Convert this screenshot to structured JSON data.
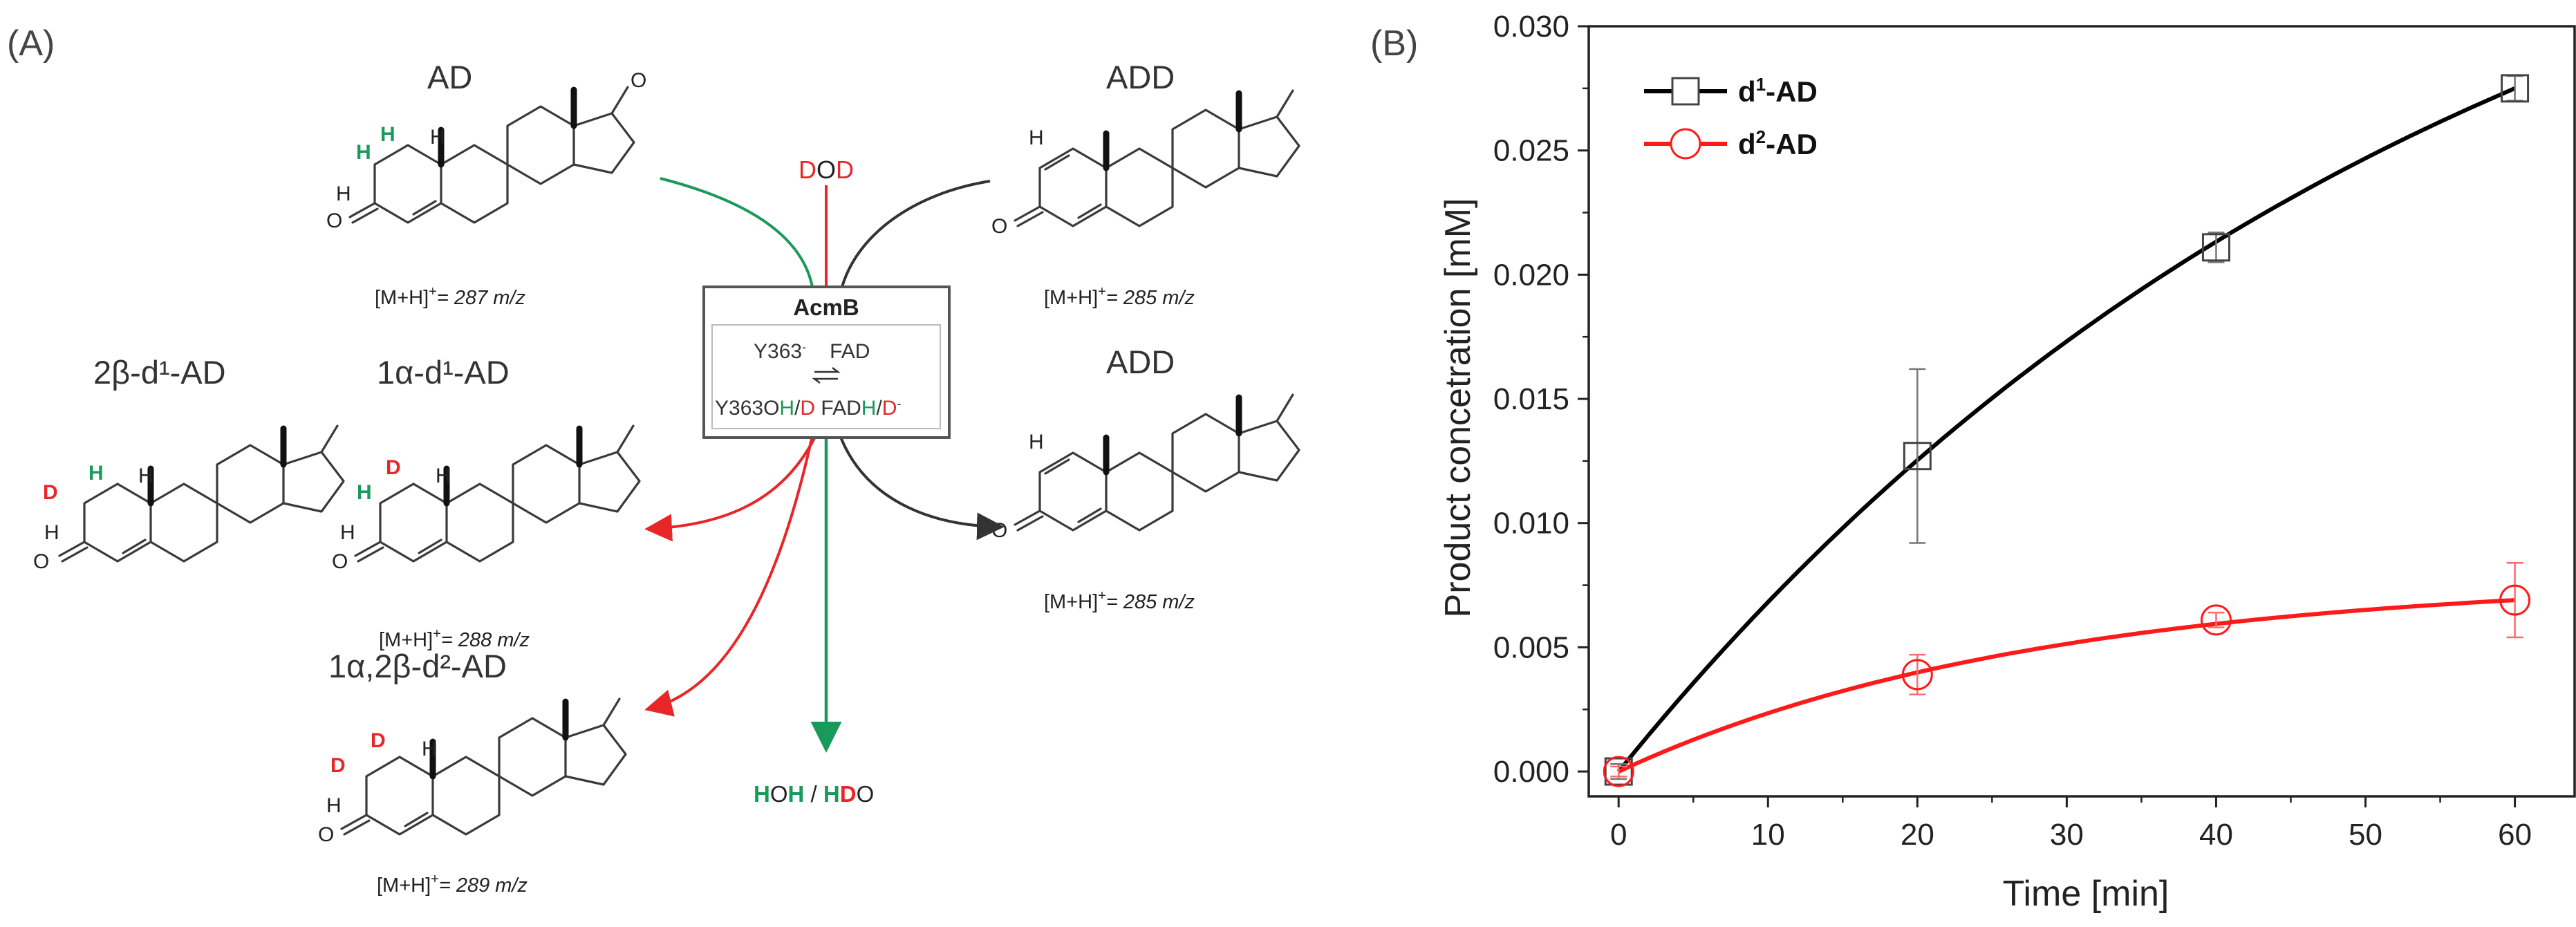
{
  "panel_a": {
    "label": "(A)",
    "compounds": [
      {
        "name": "AD",
        "mz_prefix": "[M+H]",
        "mz_sup": "+",
        "mz_value": "= 287 m/z"
      },
      {
        "name": "2β-d¹-AD"
      },
      {
        "name": "1α-d¹-AD",
        "mz_prefix": "[M+H]",
        "mz_sup": "+",
        "mz_value": "= 288 m/z"
      },
      {
        "name": "1α,2β-d²-AD",
        "mz_prefix": "[M+H]",
        "mz_sup": "+",
        "mz_value": "= 289 m/z"
      },
      {
        "name": "ADD",
        "mz_prefix": "[M+H]",
        "mz_sup": "+",
        "mz_value": "= 285 m/z"
      },
      {
        "name": "ADD",
        "mz_prefix": "[M+H]",
        "mz_sup": "+",
        "mz_value": "= 285 m/z"
      }
    ],
    "reagent": {
      "d1": "D",
      "o": "O",
      "d2": "D"
    },
    "enzyme": {
      "name": "AcmB",
      "row1_left": "Y363",
      "row1_left_sup": "-",
      "row1_right": "FAD",
      "row2_a": "Y363O",
      "row2_h": "H",
      "row2_slash": "/",
      "row2_d": "D",
      "row2_fad": " FAD",
      "row2_h2": "H",
      "row2_slash2": "/",
      "row2_d2": "D",
      "row2_sup": "-"
    },
    "product_water": {
      "h1": "H",
      "o1": "O",
      "h2": "H",
      "sep": " / ",
      "h3": "H",
      "d": "D",
      "o2": "O"
    },
    "atoms": {
      "H": "H",
      "D": "D",
      "O": "O"
    },
    "colors": {
      "green": "#1a9a5a",
      "red": "#e8262a",
      "dark": "#333333"
    }
  },
  "panel_b": {
    "label": "(B)"
  },
  "chart_data": {
    "type": "scatter",
    "xlabel": "Time [min]",
    "ylabel": "Product concetration [mM]",
    "xlim": [
      -2,
      64
    ],
    "ylim": [
      -0.001,
      0.03
    ],
    "xticks": [
      "0",
      "10",
      "20",
      "30",
      "40",
      "50",
      "60"
    ],
    "yticks": [
      "0.000",
      "0.005",
      "0.010",
      "0.015",
      "0.020",
      "0.025",
      "0.030"
    ],
    "legend_position": "top-left",
    "series": [
      {
        "name": "d¹-AD",
        "legend_base": "d",
        "legend_sup": "1",
        "legend_tail": "-AD",
        "marker": "square",
        "color": "#000000",
        "x": [
          0,
          20,
          40,
          60
        ],
        "y": [
          0.0,
          0.0127,
          0.0211,
          0.0275
        ],
        "err": [
          0.0003,
          0.0035,
          0.0006,
          0.0005
        ]
      },
      {
        "name": "d²-AD",
        "legend_base": "d",
        "legend_sup": "2",
        "legend_tail": "-AD",
        "marker": "circle",
        "color": "#ff1a1a",
        "x": [
          0,
          20,
          40,
          60
        ],
        "y": [
          0.0,
          0.0039,
          0.0061,
          0.0069
        ],
        "err": [
          0.0002,
          0.0008,
          0.0003,
          0.0015
        ]
      }
    ]
  }
}
